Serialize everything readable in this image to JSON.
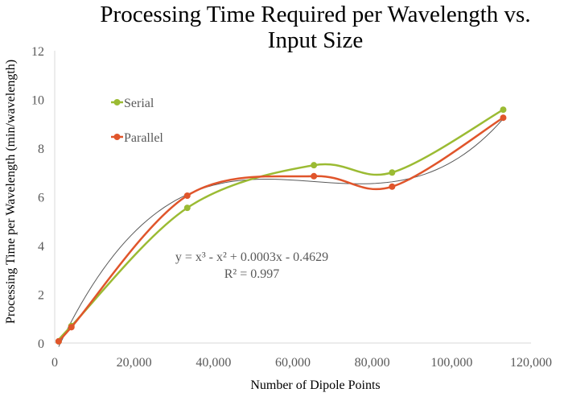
{
  "chart_data": {
    "type": "line",
    "title": "Processing Time Required per Wavelength vs. Input Size",
    "title_lines": [
      "Processing Time Required per Wavelength vs.",
      "Input Size"
    ],
    "xlabel": "Number of Dipole Points",
    "ylabel": "Processing Time per Wavelength (min/wavelength)",
    "xlim": [
      0,
      120000
    ],
    "ylim": [
      0,
      12
    ],
    "xticks": [
      0,
      20000,
      40000,
      60000,
      80000,
      100000,
      120000
    ],
    "xtick_labels": [
      "0",
      "20,000",
      "40,000",
      "60,000",
      "80,000",
      "100,000",
      "120,000"
    ],
    "yticks": [
      0,
      2,
      4,
      6,
      8,
      10,
      12
    ],
    "ytick_labels": [
      "0",
      "2",
      "4",
      "6",
      "8",
      "10",
      "12"
    ],
    "grid": false,
    "legend_position": "upper-left inside",
    "smoothed": true,
    "series": [
      {
        "name": "Serial",
        "color": "#9BBB33",
        "x": [
          1000,
          4200,
          33400,
          65300,
          85000,
          113000
        ],
        "y": [
          0.07,
          0.7,
          5.55,
          7.3,
          7.0,
          9.58
        ]
      },
      {
        "name": "Parallel",
        "color": "#E0552B",
        "x": [
          1000,
          4200,
          33400,
          65300,
          85000,
          113000
        ],
        "y": [
          0.07,
          0.65,
          6.05,
          6.85,
          6.42,
          9.25
        ]
      }
    ],
    "trendline": {
      "type": "polynomial-3",
      "color": "#595959",
      "equation": "y = x³ - x² + 0.0003x - 0.4629",
      "r_squared": "R² = 0.997"
    }
  }
}
